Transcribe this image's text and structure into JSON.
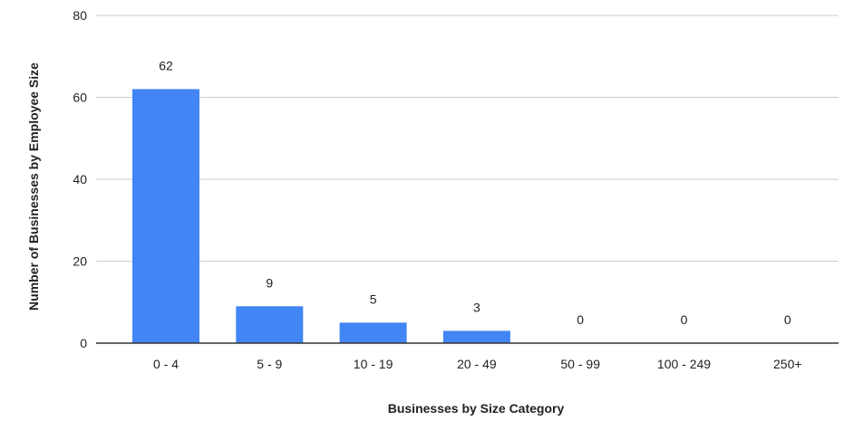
{
  "chart_data": {
    "type": "bar",
    "categories": [
      "0 - 4",
      "5 - 9",
      "10 - 19",
      "20 - 49",
      "50 - 99",
      "100 - 249",
      "250+"
    ],
    "values": [
      62,
      9,
      5,
      3,
      0,
      0,
      0
    ],
    "data_labels": [
      "62",
      "9",
      "5",
      "3",
      "0",
      "0",
      "0"
    ],
    "xlabel": "Businesses by Size Category",
    "ylabel": "Number of Businesses by Employee Size",
    "ylim": [
      0,
      80
    ],
    "yticks": [
      0,
      20,
      40,
      60,
      80
    ],
    "grid": true,
    "legend": "none",
    "bar_color": "#4285f4",
    "grid_color": "#cccccc",
    "axis_color": "#333333"
  }
}
